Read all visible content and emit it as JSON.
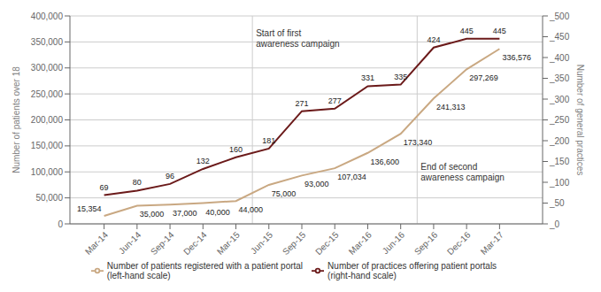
{
  "chart_data": {
    "type": "line",
    "categories": [
      "Mar-14",
      "Jun-14",
      "Sep-14",
      "Dec-14",
      "Mar-15",
      "Jun-15",
      "Sep-15",
      "Dec-15",
      "Mar-16",
      "Jun-16",
      "Sep-16",
      "Dec-16",
      "Mar-17"
    ],
    "series": [
      {
        "name": "Number of patients registered with a patient portal\n(left-hand scale)",
        "color": "#c9a882",
        "values": [
          15354,
          35000,
          37000,
          40000,
          44000,
          75000,
          93000,
          107034,
          136600,
          173340,
          241313,
          297269,
          336576
        ],
        "value_labels": [
          "15,354",
          "35,000",
          "37,000",
          "40,000",
          "44,000",
          "75,000",
          "93,000",
          "107,034",
          "136,600",
          "173,340",
          "241,313",
          "297,269",
          "336,576"
        ]
      },
      {
        "name": "Number of practices offering patient portals\n(right-hand scale)",
        "color": "#6b1a1a",
        "values": [
          69,
          80,
          96,
          132,
          160,
          181,
          271,
          277,
          331,
          335,
          424,
          445,
          445
        ],
        "axis": "y2"
      }
    ],
    "ylabel": "Number of patients over 18",
    "y2label": "Number of general practices",
    "ylim": [
      0,
      400000
    ],
    "yticks": [
      0,
      {
        "value": 50000,
        "label": "50,000"
      },
      {
        "value": 100000,
        "label": "100,000"
      },
      {
        "value": 150000,
        "label": "150,000"
      },
      {
        "value": 200000,
        "label": "200,000"
      },
      {
        "value": 250000,
        "label": "250,000"
      },
      {
        "value": 300000,
        "label": "300,000"
      },
      {
        "value": 350000,
        "label": "350,000"
      },
      {
        "value": 400000,
        "label": "400,000"
      }
    ],
    "y2lim": [
      0,
      500
    ],
    "y2ticks": [
      {
        "value": 0,
        "label": "_0"
      },
      {
        "value": 50,
        "label": "_50"
      },
      {
        "value": 100,
        "label": "_100"
      },
      {
        "value": 150,
        "label": "_150"
      },
      {
        "value": 200,
        "label": "_200"
      },
      {
        "value": 250,
        "label": "_250"
      },
      {
        "value": 300,
        "label": "_300"
      },
      {
        "value": 350,
        "label": "_350"
      },
      {
        "value": 400,
        "label": "_400"
      },
      {
        "value": 450,
        "label": "_450"
      },
      {
        "value": 500,
        "label": "_500"
      }
    ],
    "annotations": [
      {
        "x": 4.5,
        "text": "Start of first\nawareness campaign"
      },
      {
        "x": 9.5,
        "text": "End of second\nawareness campaign"
      }
    ],
    "grid": true,
    "legend": "bottom",
    "data_labels": true
  }
}
